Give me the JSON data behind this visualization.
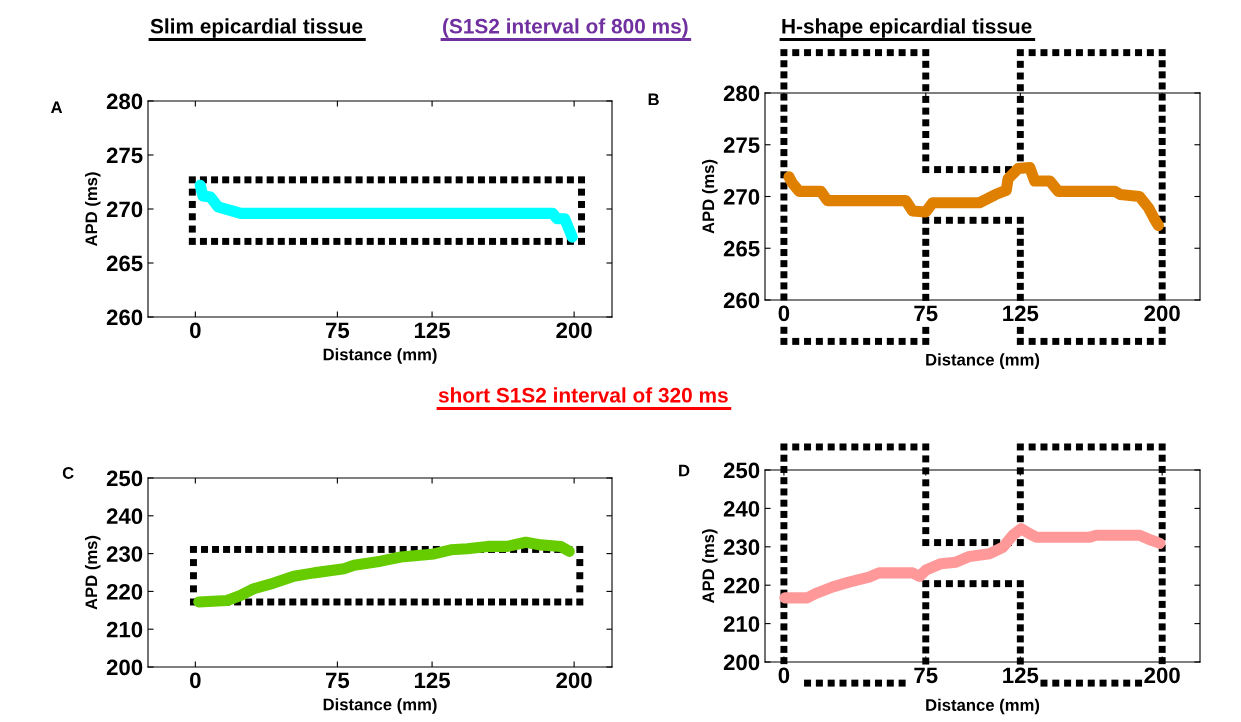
{
  "chart_data": [
    {
      "type": "line",
      "title": "A",
      "xlabel": "Distance (mm)",
      "ylabel": "APD (ms)",
      "annotations": [
        "Slim epicardial tissue",
        "(S1S2 interval of 800 ms)"
      ],
      "xlim": [
        -25,
        220
      ],
      "xticks": [
        0,
        75,
        125,
        200
      ],
      "ylim": [
        260,
        280
      ],
      "yticks": [
        260,
        265,
        270,
        275,
        280
      ],
      "grid": false,
      "legend": false,
      "series": [
        {
          "color": "#00ffff",
          "x": [
            2.6,
            4,
            8,
            12,
            24,
            60,
            100,
            140,
            188.7,
            191,
            195,
            199
          ],
          "values": [
            272.2,
            271.2,
            271.1,
            270.2,
            269.6,
            269.6,
            269.6,
            269.6,
            269.6,
            269.1,
            269.1,
            267.4
          ]
        }
      ]
    },
    {
      "type": "line",
      "title": "B",
      "xlabel": "Distance (mm)",
      "ylabel": "APD (ms)",
      "annotations": [
        "H-shape epicardial tissue"
      ],
      "xlim": [
        -10,
        220
      ],
      "xticks": [
        0,
        75,
        125,
        200
      ],
      "ylim": [
        260,
        280
      ],
      "yticks": [
        260,
        265,
        270,
        275,
        280
      ],
      "grid": false,
      "legend": false,
      "series": [
        {
          "color": "#e08000",
          "x": [
            2.7,
            4.4,
            8,
            19.5,
            23,
            64.5,
            68,
            75,
            78.7,
            103.4,
            112,
            117.6,
            118.5,
            123.8,
            130,
            132.6,
            140.6,
            145,
            175,
            177.8,
            188,
            192.8,
            196.3,
            198
          ],
          "values": [
            271.9,
            271.3,
            270.5,
            270.5,
            269.6,
            269.6,
            268.6,
            268.5,
            269.4,
            269.4,
            270.2,
            270.6,
            271.7,
            272.7,
            272.8,
            271.5,
            271.5,
            270.5,
            270.5,
            270.2,
            270,
            268.9,
            267.7,
            267.2
          ]
        }
      ]
    },
    {
      "type": "line",
      "title": "C",
      "xlabel": "Distance (mm)",
      "ylabel": "APD (ms)",
      "annotations": [
        "short S1S2 interval of 320 ms"
      ],
      "xlim": [
        -25,
        220
      ],
      "xticks": [
        0,
        75,
        125,
        200
      ],
      "ylim": [
        200,
        250
      ],
      "yticks": [
        200,
        210,
        220,
        230,
        240,
        250
      ],
      "grid": false,
      "legend": false,
      "series": [
        {
          "color": "#66cc00",
          "x": [
            1.8,
            16.8,
            23.8,
            30.8,
            41.4,
            52,
            62.6,
            78.5,
            83.8,
            97.9,
            108.5,
            126,
            134.9,
            143.7,
            154.3,
            164.8,
            174.5,
            182.4,
            193,
            197.4
          ],
          "values": [
            217.2,
            217.6,
            218.9,
            220.7,
            222.2,
            224,
            224.9,
            226,
            226.9,
            228,
            229.1,
            229.9,
            231,
            231.3,
            231.9,
            231.9,
            233,
            232.3,
            231.9,
            230.6
          ]
        }
      ]
    },
    {
      "type": "line",
      "title": "D",
      "xlabel": "Distance (mm)",
      "ylabel": "APD (ms)",
      "xlim": [
        -10,
        220
      ],
      "xticks": [
        0,
        75,
        125,
        200
      ],
      "ylim": [
        200,
        250
      ],
      "yticks": [
        200,
        210,
        220,
        230,
        240,
        250
      ],
      "grid": false,
      "legend": false,
      "series": [
        {
          "color": "#ff9999",
          "x": [
            0.5,
            12.3,
            16.7,
            25.5,
            34.4,
            45,
            50.3,
            68,
            71.6,
            75,
            83,
            91,
            98.1,
            108.7,
            115.8,
            121,
            125.5,
            129.9,
            133.4,
            161.7,
            165.2,
            188.2,
            194.4,
            198.8
          ],
          "values": [
            216.7,
            216.7,
            217.8,
            219.5,
            220.8,
            222.1,
            223.2,
            223.2,
            222.3,
            223.9,
            225.6,
            226,
            227.5,
            228.2,
            229.9,
            233,
            234.7,
            233.4,
            232.5,
            232.5,
            233,
            233,
            231.7,
            230.9
          ]
        }
      ]
    }
  ]
}
